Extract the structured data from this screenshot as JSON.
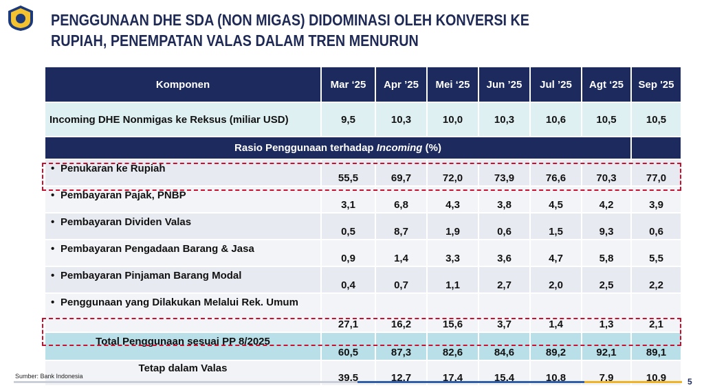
{
  "header": {
    "title_lines": [
      "PENGGUNAAN DHE SDA (NON MIGAS) DIDOMINASI OLEH KONVERSI KE",
      "RUPIAH, PENEMPATAN VALAS DALAM TREN MENURUN"
    ]
  },
  "table": {
    "columns": [
      "Komponen",
      "Mar ‘25",
      "Apr ’25",
      "Mei ‘25",
      "Jun ’25",
      "Jul ’25",
      "Agt ‘25",
      "Sep '25"
    ],
    "incoming": {
      "label": "Incoming DHE Nonmigas ke Reksus (miliar USD)",
      "values": [
        "9,5",
        "10,3",
        "10,0",
        "10,3",
        "10,6",
        "10,5",
        "10,5"
      ]
    },
    "section": [
      "Rasio Penggunaan terhadap ",
      "Incoming",
      " (%)"
    ],
    "rows": [
      {
        "label": "Penukaran ke Rupiah",
        "values": [
          "55,5",
          "69,7",
          "72,0",
          "73,9",
          "76,6",
          "70,3",
          "77,0"
        ]
      },
      {
        "label": "Pembayaran Pajak, PNBP",
        "values": [
          "3,1",
          "6,8",
          "4,3",
          "3,8",
          "4,5",
          "4,2",
          "3,9"
        ]
      },
      {
        "label": "Pembayaran Dividen Valas",
        "values": [
          "0,5",
          "8,7",
          "1,9",
          "0,6",
          "1,5",
          "9,3",
          "0,6"
        ]
      },
      {
        "label": "Pembayaran Pengadaan Barang & Jasa",
        "values": [
          "0,9",
          "1,4",
          "3,3",
          "3,6",
          "4,7",
          "5,8",
          "5,5"
        ]
      },
      {
        "label": "Pembayaran Pinjaman Barang Modal",
        "values": [
          "0,4",
          "0,7",
          "1,1",
          "2,7",
          "2,0",
          "2,5",
          "2,2"
        ]
      },
      {
        "label": "Penggunaan yang Dilakukan Melalui Rek. Umum",
        "values": [
          "27,1",
          "16,2",
          "15,6",
          "3,7",
          "1,4",
          "1,3",
          "2,1"
        ]
      }
    ],
    "total": {
      "label": "Total Penggunaan sesuai PP 8/2025",
      "values": [
        "60,5",
        "87,3",
        "82,6",
        "84,6",
        "89,2",
        "92,1",
        "89,1"
      ]
    },
    "remaining": {
      "label": "Tetap dalam Valas",
      "values": [
        "39,5",
        "12,7",
        "17,4",
        "15,4",
        "10,8",
        "7,9",
        "10,9"
      ]
    }
  },
  "footer": {
    "source": "Sumber: Bank Indonesia",
    "page": "5"
  }
}
